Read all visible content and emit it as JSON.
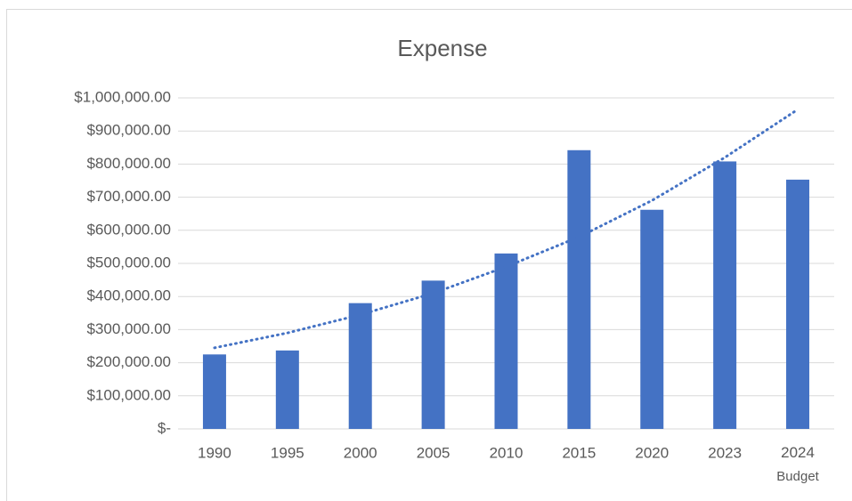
{
  "chart_data": {
    "type": "bar",
    "title": "Expense",
    "categories": [
      "1990",
      "1995",
      "2000",
      "2005",
      "2010",
      "2015",
      "2020",
      "2023",
      "2024 Budget"
    ],
    "values": [
      225000,
      237000,
      380000,
      448000,
      530000,
      842000,
      662000,
      808000,
      753000
    ],
    "color": "#4472c4",
    "trendline": {
      "values": [
        245000,
        290000,
        345000,
        410000,
        490000,
        580000,
        690000,
        820000,
        965000
      ],
      "color": "#4472c4",
      "style": "dotted"
    },
    "ylim": [
      0,
      1000000
    ],
    "yticks": [
      {
        "value": 0,
        "label": "$-"
      },
      {
        "value": 100000,
        "label": "$100,000.00"
      },
      {
        "value": 200000,
        "label": "$200,000.00"
      },
      {
        "value": 300000,
        "label": "$300,000.00"
      },
      {
        "value": 400000,
        "label": "$400,000.00"
      },
      {
        "value": 500000,
        "label": "$500,000.00"
      },
      {
        "value": 600000,
        "label": "$600,000.00"
      },
      {
        "value": 700000,
        "label": "$700,000.00"
      },
      {
        "value": 800000,
        "label": "$800,000.00"
      },
      {
        "value": 900000,
        "label": "$900,000.00"
      },
      {
        "value": 1000000,
        "label": "$1,000,000.00"
      }
    ],
    "grid": true
  }
}
